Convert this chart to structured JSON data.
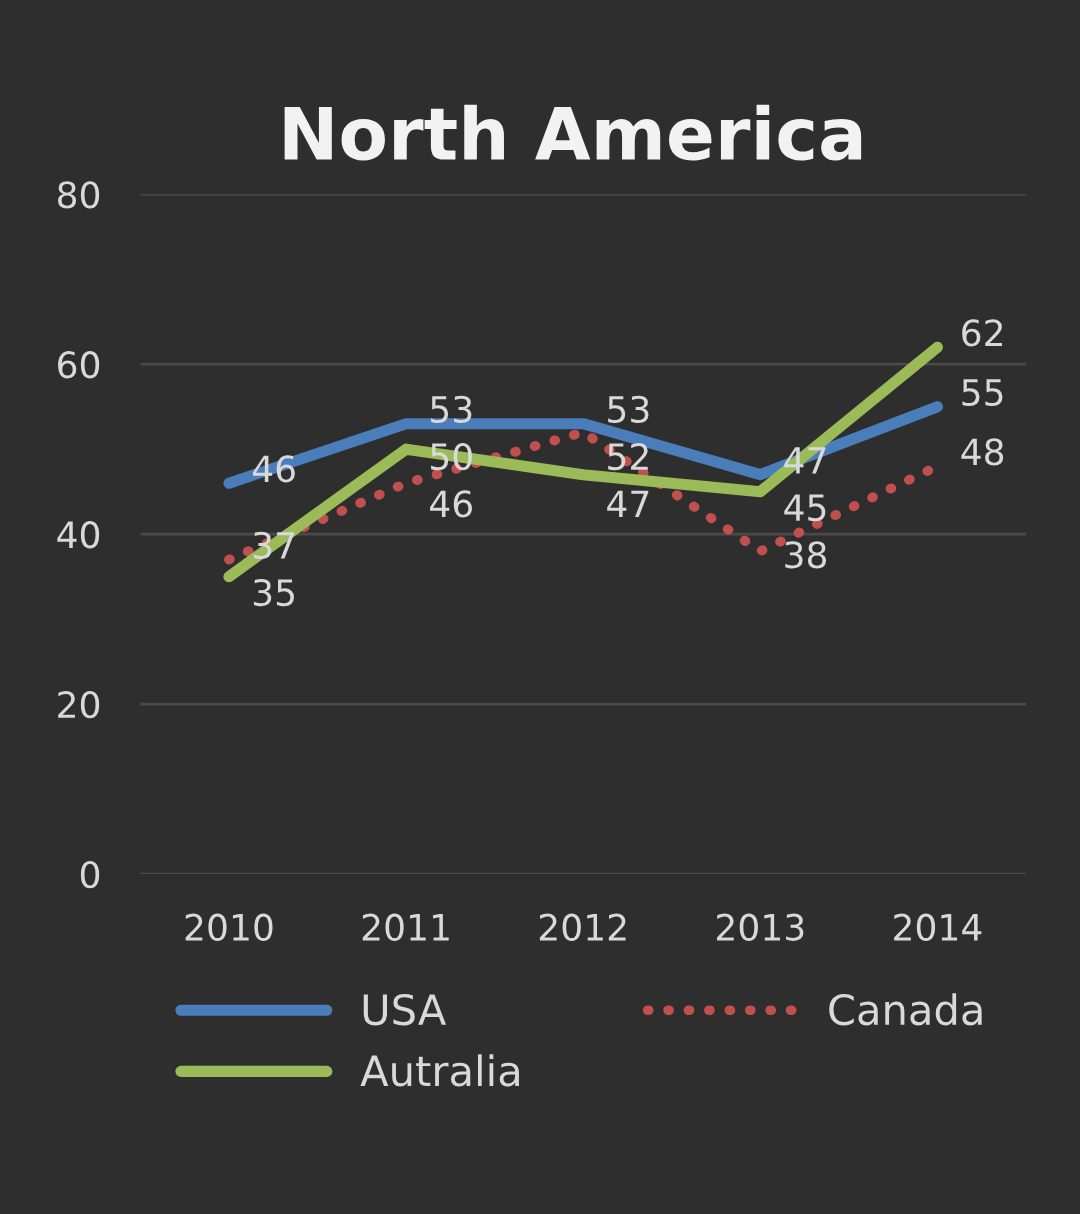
{
  "chart_data": {
    "type": "line",
    "title": "North America",
    "categories": [
      "2010",
      "2011",
      "2012",
      "2013",
      "2014"
    ],
    "series": [
      {
        "name": "USA",
        "color": "#4a7ebb",
        "line_style": "solid",
        "values": [
          46,
          53,
          53,
          47,
          55
        ]
      },
      {
        "name": "Canada",
        "color": "#c0504d",
        "line_style": "dotted",
        "values": [
          37,
          46,
          52,
          38,
          48
        ]
      },
      {
        "name": "Autralia",
        "color": "#9bbb59",
        "line_style": "solid",
        "values": [
          35,
          50,
          47,
          45,
          62
        ]
      }
    ],
    "ylim": [
      0,
      80
    ],
    "yticks": [
      0,
      20,
      40,
      60,
      80
    ],
    "grid": "y",
    "legend": "bottom",
    "data_labels": true
  }
}
